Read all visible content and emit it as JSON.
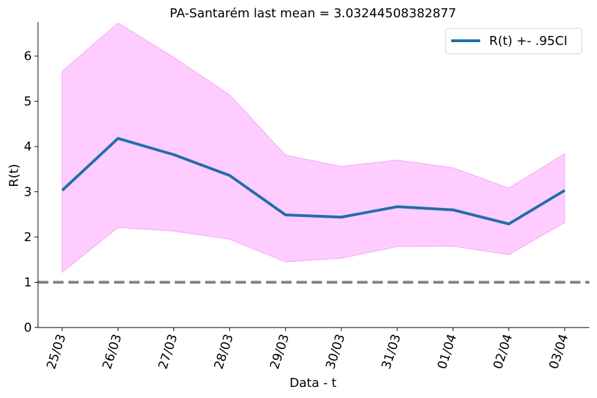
{
  "chart_data": {
    "type": "line",
    "title": "PA-Santarém last mean = 3.03244508382877",
    "xlabel": "Data - t",
    "ylabel": "R(t)",
    "categories": [
      "25/03",
      "26/03",
      "27/03",
      "28/03",
      "29/03",
      "30/03",
      "31/03",
      "01/04",
      "02/04",
      "03/04"
    ],
    "series": [
      {
        "name": "R(t) +- .95CI",
        "values": [
          3.03,
          4.18,
          3.82,
          3.36,
          2.49,
          2.44,
          2.67,
          2.6,
          2.29,
          3.03
        ],
        "lower": [
          1.22,
          2.21,
          2.13,
          1.95,
          1.45,
          1.53,
          1.79,
          1.8,
          1.61,
          2.32
        ],
        "upper": [
          5.66,
          6.73,
          5.97,
          5.14,
          3.81,
          3.56,
          3.7,
          3.53,
          3.08,
          3.84
        ],
        "color": "#1f6fa8",
        "band_color": "#ffccff"
      }
    ],
    "reference_line": {
      "y": 1,
      "color": "#808080",
      "style": "dashed"
    },
    "ylim": [
      0,
      6.75
    ],
    "yticks": [
      0,
      1,
      2,
      3,
      4,
      5,
      6
    ],
    "grid": false,
    "legend": "top-right"
  }
}
